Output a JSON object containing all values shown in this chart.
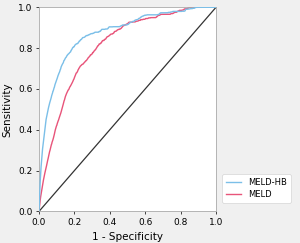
{
  "title": "",
  "xlabel": "1 - Specificity",
  "ylabel": "Sensitivity",
  "xlim": [
    0.0,
    1.0
  ],
  "ylim": [
    0.0,
    1.0
  ],
  "xticks": [
    0.0,
    0.2,
    0.4,
    0.6,
    0.8,
    1.0
  ],
  "yticks": [
    0.0,
    0.2,
    0.4,
    0.6,
    0.8,
    1.0
  ],
  "color_meld_hb": "#7bbfe8",
  "color_meld": "#e8547a",
  "color_diagonal": "#333333",
  "legend_labels": [
    "MELD-HB",
    "MELD"
  ],
  "background_color": "#f0f0f0",
  "plot_background": "#ffffff",
  "line_width": 1.0,
  "tick_fontsize": 6.5,
  "label_fontsize": 7.5,
  "legend_fontsize": 6.0,
  "kp_hb_x": [
    0.0,
    0.01,
    0.03,
    0.05,
    0.08,
    0.1,
    0.13,
    0.15,
    0.2,
    0.25,
    0.3,
    0.4,
    0.5,
    0.6,
    0.7,
    0.8,
    0.9,
    1.0
  ],
  "kp_hb_y": [
    0.0,
    0.2,
    0.38,
    0.5,
    0.6,
    0.65,
    0.72,
    0.76,
    0.82,
    0.86,
    0.89,
    0.93,
    0.95,
    0.97,
    0.98,
    0.99,
    0.995,
    1.0
  ],
  "kp_meld_x": [
    0.0,
    0.01,
    0.03,
    0.05,
    0.08,
    0.1,
    0.13,
    0.15,
    0.2,
    0.25,
    0.3,
    0.4,
    0.5,
    0.6,
    0.7,
    0.8,
    0.9,
    1.0
  ],
  "kp_meld_y": [
    0.0,
    0.08,
    0.18,
    0.26,
    0.36,
    0.42,
    0.5,
    0.56,
    0.65,
    0.72,
    0.77,
    0.84,
    0.89,
    0.92,
    0.95,
    0.97,
    0.99,
    1.0
  ]
}
